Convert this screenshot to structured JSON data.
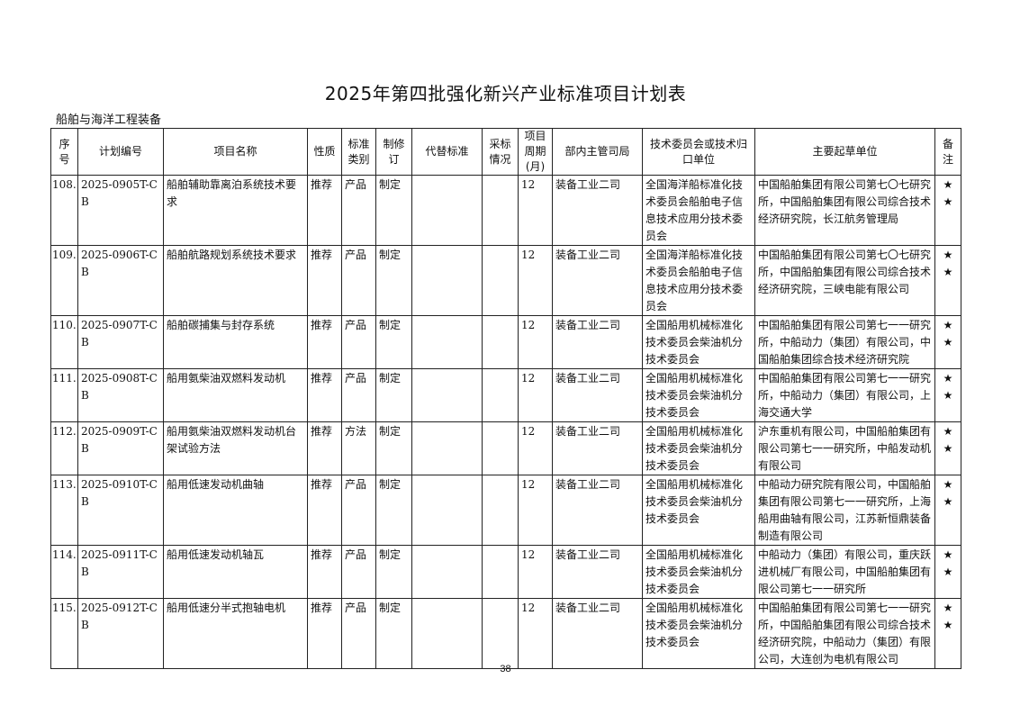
{
  "title": "2025年第四批强化新兴产业标准项目计划表",
  "section": "船舶与海洋工程装备",
  "headers": [
    "序号",
    "计划编号",
    "项目名称",
    "性质",
    "标准类别",
    "制修订",
    "代替标准",
    "采标情况",
    "项目周期(月)",
    "部内主管司局",
    "技术委员会或技术归口单位",
    "主要起草单位",
    "备注"
  ],
  "rows": [
    {
      "no": "108.",
      "code": "2025-0905T-CB",
      "name": "船舶辅助靠离泊系统技术要求",
      "nature": "推荐",
      "category": "产品",
      "type": "制定",
      "replace": "",
      "adopt": "",
      "period": "12",
      "dept": "装备工业二司",
      "committee": "全国海洋船标准化技术委员会船舶电子信息技术应用分技术委员会",
      "drafters": "中国船舶集团有限公司第七〇七研究所，中国船舶集团有限公司综合技术经济研究院，长江航务管理局",
      "note": "★★"
    },
    {
      "no": "109.",
      "code": "2025-0906T-CB",
      "name": "船舶航路规划系统技术要求",
      "nature": "推荐",
      "category": "产品",
      "type": "制定",
      "replace": "",
      "adopt": "",
      "period": "12",
      "dept": "装备工业二司",
      "committee": "全国海洋船标准化技术委员会船舶电子信息技术应用分技术委员会",
      "drafters": "中国船舶集团有限公司第七〇七研究所，中国船舶集团有限公司综合技术经济研究院，三峡电能有限公司",
      "note": "★★"
    },
    {
      "no": "110.",
      "code": "2025-0907T-CB",
      "name": "船舶碳捕集与封存系统",
      "nature": "推荐",
      "category": "产品",
      "type": "制定",
      "replace": "",
      "adopt": "",
      "period": "12",
      "dept": "装备工业二司",
      "committee": "全国船用机械标准化技术委员会柴油机分技术委员会",
      "drafters": "中国船舶集团有限公司第七一一研究所，中船动力（集团）有限公司，中国船舶集团综合技术经济研究院",
      "note": "★★"
    },
    {
      "no": "111.",
      "code": "2025-0908T-CB",
      "name": "船用氨柴油双燃料发动机",
      "nature": "推荐",
      "category": "产品",
      "type": "制定",
      "replace": "",
      "adopt": "",
      "period": "12",
      "dept": "装备工业二司",
      "committee": "全国船用机械标准化技术委员会柴油机分技术委员会",
      "drafters": "中国船舶集团有限公司第七一一研究所，中船动力（集团）有限公司，上海交通大学",
      "note": "★★"
    },
    {
      "no": "112.",
      "code": "2025-0909T-CB",
      "name": "船用氨柴油双燃料发动机台架试验方法",
      "nature": "推荐",
      "category": "方法",
      "type": "制定",
      "replace": "",
      "adopt": "",
      "period": "12",
      "dept": "装备工业二司",
      "committee": "全国船用机械标准化技术委员会柴油机分技术委员会",
      "drafters": "沪东重机有限公司，中国船舶集团有限公司第七一一研究所，中船发动机有限公司",
      "note": "★★"
    },
    {
      "no": "113.",
      "code": "2025-0910T-CB",
      "name": "船用低速发动机曲轴",
      "nature": "推荐",
      "category": "产品",
      "type": "制定",
      "replace": "",
      "adopt": "",
      "period": "12",
      "dept": "装备工业二司",
      "committee": "全国船用机械标准化技术委员会柴油机分技术委员会",
      "drafters": "中船动力研究院有限公司，中国船舶集团有限公司第七一一研究所，上海船用曲轴有限公司，江苏新恒鼎装备制造有限公司",
      "note": "★★"
    },
    {
      "no": "114.",
      "code": "2025-0911T-CB",
      "name": "船用低速发动机轴瓦",
      "nature": "推荐",
      "category": "产品",
      "type": "制定",
      "replace": "",
      "adopt": "",
      "period": "12",
      "dept": "装备工业二司",
      "committee": "全国船用机械标准化技术委员会柴油机分技术委员会",
      "drafters": "中船动力（集团）有限公司，重庆跃进机械厂有限公司，中国船舶集团有限公司第七一一研究所",
      "note": "★★"
    },
    {
      "no": "115.",
      "code": "2025-0912T-CB",
      "name": "船用低速分半式抱轴电机",
      "nature": "推荐",
      "category": "产品",
      "type": "制定",
      "replace": "",
      "adopt": "",
      "period": "12",
      "dept": "装备工业二司",
      "committee": "全国船用机械标准化技术委员会柴油机分技术委员会",
      "drafters": "中国船舶集团有限公司第七一一研究所，中国船舶集团有限公司综合技术经济研究院，中船动力（集团）有限公司，大连创为电机有限公司",
      "note": "★★"
    }
  ],
  "page_number": "38"
}
